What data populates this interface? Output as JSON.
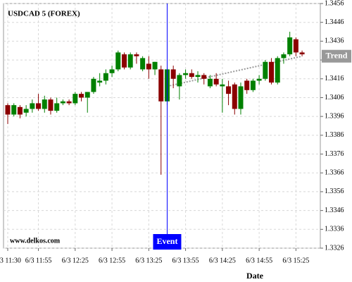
{
  "chart_data": {
    "type": "candlestick",
    "title": "USDCAD 5 (FOREX)",
    "watermark": "www.delkos.com",
    "x_label": "Date",
    "categories": [
      "6/3 11:30",
      null,
      null,
      null,
      null,
      "6/3 11:55",
      null,
      null,
      null,
      null,
      null,
      "6/3 12:25",
      null,
      null,
      null,
      null,
      null,
      "6/3 12:55",
      null,
      null,
      null,
      null,
      null,
      "6/3 13:25",
      null,
      null,
      null,
      null,
      null,
      "6/3 13:55",
      null,
      null,
      null,
      null,
      null,
      "6/3 14:25",
      null,
      null,
      null,
      null,
      null,
      "6/3 14:55",
      null,
      null,
      null,
      null,
      null,
      "6/3 15:25",
      null
    ],
    "open": [
      1.3402,
      1.3397,
      1.3401,
      1.3398,
      1.34,
      1.3403,
      1.34,
      1.3405,
      1.3399,
      1.3403,
      1.3404,
      1.3403,
      1.3408,
      1.3406,
      1.3409,
      1.3414,
      1.3415,
      1.3419,
      1.3421,
      1.3429,
      1.3422,
      1.3429,
      1.3421,
      1.3424,
      1.3421,
      1.3421,
      1.3404,
      1.3421,
      1.3412,
      1.3418,
      1.3419,
      1.3417,
      1.3418,
      1.3412,
      1.3416,
      1.3412,
      1.3412,
      1.3413,
      1.34,
      1.3415,
      1.341,
      1.3415,
      1.3416,
      1.3425,
      1.3414,
      1.3427,
      1.3429,
      1.3437,
      1.343
    ],
    "high": [
      1.3403,
      1.3403,
      1.3402,
      1.3402,
      1.3405,
      1.3408,
      1.3407,
      1.3406,
      1.3406,
      1.3405,
      1.3405,
      1.3409,
      1.3409,
      1.3409,
      1.3417,
      1.3419,
      1.3421,
      1.3423,
      1.3431,
      1.343,
      1.343,
      1.343,
      1.3428,
      1.3428,
      1.3425,
      1.3423,
      1.3422,
      1.3423,
      1.3419,
      1.3421,
      1.3421,
      1.342,
      1.3419,
      1.3418,
      1.3419,
      1.3416,
      1.3415,
      1.3414,
      1.3414,
      1.3416,
      1.3416,
      1.3418,
      1.3426,
      1.3427,
      1.3428,
      1.343,
      1.3441,
      1.3438,
      1.3431
    ],
    "low": [
      1.3392,
      1.3396,
      1.3395,
      1.3396,
      1.3398,
      1.3399,
      1.3398,
      1.3397,
      1.3398,
      1.3402,
      1.3402,
      1.3402,
      1.3404,
      1.3398,
      1.3408,
      1.3412,
      1.3413,
      1.3417,
      1.342,
      1.3421,
      1.3421,
      1.3424,
      1.342,
      1.3416,
      1.3418,
      1.3365,
      1.3402,
      1.3411,
      1.3405,
      1.3416,
      1.3416,
      1.3414,
      1.3413,
      1.3411,
      1.3412,
      1.3398,
      1.3402,
      1.3397,
      1.3397,
      1.3408,
      1.3409,
      1.3413,
      1.3415,
      1.3413,
      1.3413,
      1.3424,
      1.3428,
      1.3428,
      1.3428
    ],
    "close": [
      1.3397,
      1.3402,
      1.3397,
      1.34,
      1.3403,
      1.34,
      1.3405,
      1.3399,
      1.3403,
      1.3404,
      1.3403,
      1.3408,
      1.3406,
      1.3409,
      1.3416,
      1.3415,
      1.3419,
      1.3421,
      1.343,
      1.3422,
      1.3429,
      1.3428,
      1.3427,
      1.3421,
      1.3425,
      1.3404,
      1.3421,
      1.3416,
      1.3418,
      1.3419,
      1.3417,
      1.3418,
      1.3416,
      1.3416,
      1.3413,
      1.3413,
      1.3408,
      1.34,
      1.3412,
      1.341,
      1.3415,
      1.3416,
      1.3425,
      1.3414,
      1.3427,
      1.3429,
      1.3438,
      1.343,
      1.3429
    ],
    "up_color": "#008000",
    "down_color": "#8b0000",
    "ylim": [
      1.3326,
      1.3456
    ],
    "yticks": [
      1.3326,
      1.3336,
      1.3346,
      1.3356,
      1.3366,
      1.3376,
      1.3386,
      1.3396,
      1.3406,
      1.3416,
      1.3426,
      1.3436,
      1.3446,
      1.3456
    ],
    "grid": true,
    "event": {
      "label": "Event",
      "index": 26,
      "color": "#0000ff"
    },
    "trend": {
      "label": "Trend",
      "start_index": 26,
      "end_index": 48,
      "values": [
        1.3412,
        1.3428
      ],
      "color": "#999999"
    }
  }
}
